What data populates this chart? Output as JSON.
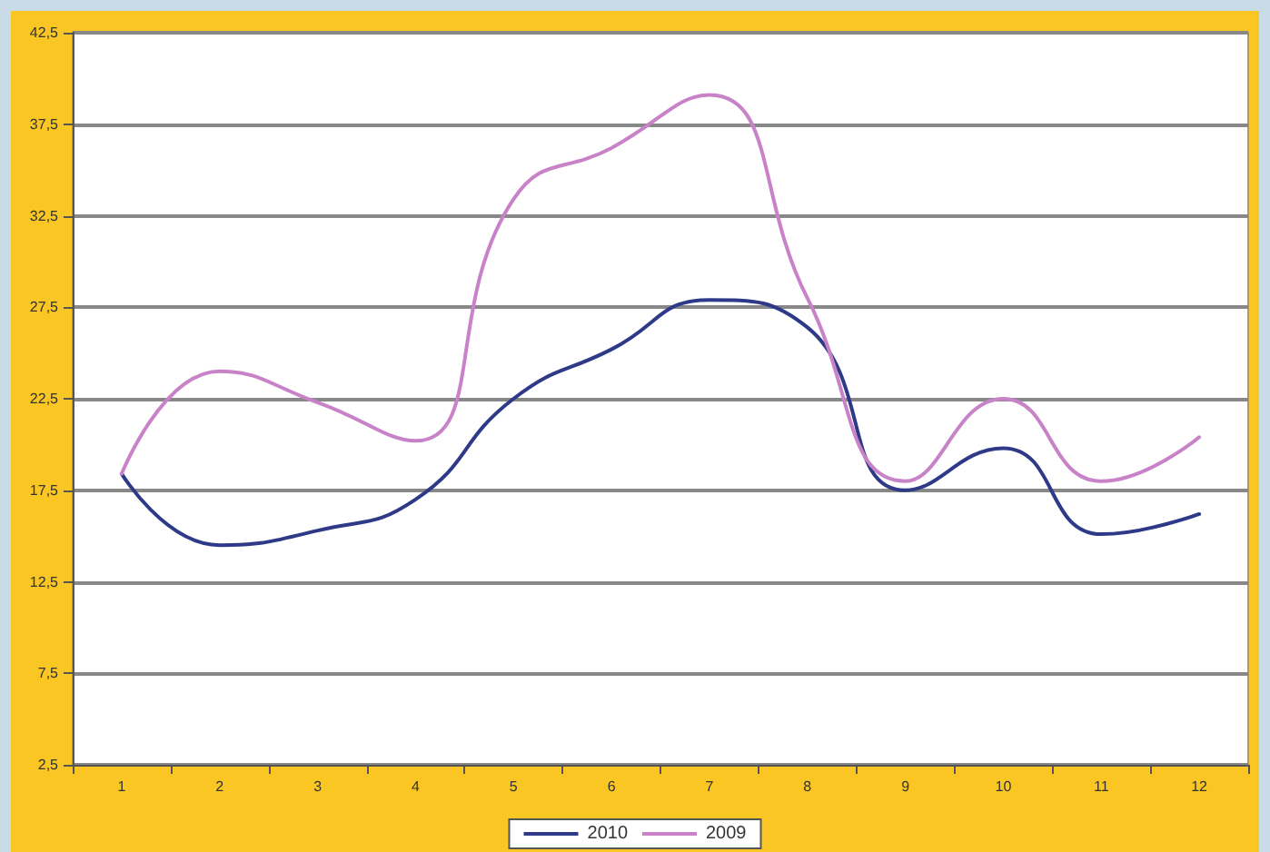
{
  "chart_data": {
    "type": "line",
    "categories": [
      "1",
      "2",
      "3",
      "4",
      "5",
      "6",
      "7",
      "8",
      "9",
      "10",
      "11",
      "12"
    ],
    "series": [
      {
        "name": "2010",
        "color": "#2e3a87",
        "values": [
          18.4,
          14.5,
          15.3,
          17.0,
          22.5,
          25.2,
          27.9,
          26.4,
          17.5,
          19.8,
          15.1,
          16.2
        ]
      },
      {
        "name": "2009",
        "color": "#c882c8",
        "values": [
          18.4,
          24.0,
          22.3,
          20.2,
          33.4,
          36.2,
          39.1,
          28.0,
          18.0,
          22.5,
          18.0,
          20.4
        ]
      }
    ],
    "ylim": [
      2.5,
      42.5
    ],
    "yticks": [
      {
        "value": 2.5,
        "label": "2,5"
      },
      {
        "value": 7.5,
        "label": "7,5"
      },
      {
        "value": 12.5,
        "label": "12,5"
      },
      {
        "value": 17.5,
        "label": "17,5"
      },
      {
        "value": 22.5,
        "label": "22,5"
      },
      {
        "value": 27.5,
        "label": "27,5"
      },
      {
        "value": 32.5,
        "label": "32,5"
      },
      {
        "value": 37.5,
        "label": "37,5"
      },
      {
        "value": 42.5,
        "label": "42,5"
      }
    ],
    "grid": "y",
    "legend": "bottom",
    "marker": "none",
    "line_style": "solid"
  }
}
